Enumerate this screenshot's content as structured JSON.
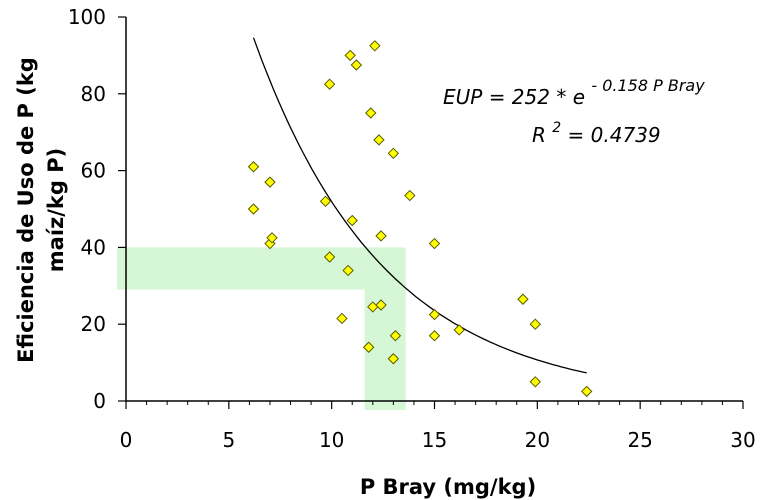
{
  "chart_data": {
    "type": "scatter",
    "xlabel": "P Bray (mg/kg)",
    "ylabel_line1": "Eficiencia de Uso de P (kg",
    "ylabel_line2": "maíz/kg P)",
    "xlim": [
      0,
      30
    ],
    "ylim": [
      0,
      100
    ],
    "x_ticks": [
      "0",
      "5",
      "10",
      "15",
      "20",
      "25",
      "30"
    ],
    "y_ticks": [
      "0",
      "20",
      "40",
      "60",
      "80",
      "100"
    ],
    "x_tick_values": [
      0,
      5,
      10,
      15,
      20,
      25,
      30
    ],
    "y_tick_values": [
      0,
      20,
      40,
      60,
      80,
      100
    ],
    "grid": false,
    "points": [
      {
        "x": 6.2,
        "y": 61
      },
      {
        "x": 6.2,
        "y": 50
      },
      {
        "x": 7.0,
        "y": 57
      },
      {
        "x": 7.0,
        "y": 41
      },
      {
        "x": 7.1,
        "y": 42.5
      },
      {
        "x": 9.7,
        "y": 52
      },
      {
        "x": 9.9,
        "y": 37.5
      },
      {
        "x": 9.9,
        "y": 82.5
      },
      {
        "x": 10.5,
        "y": 21.5
      },
      {
        "x": 10.8,
        "y": 34
      },
      {
        "x": 10.9,
        "y": 90
      },
      {
        "x": 11.0,
        "y": 47
      },
      {
        "x": 11.2,
        "y": 87.5
      },
      {
        "x": 11.8,
        "y": 14
      },
      {
        "x": 11.9,
        "y": 75
      },
      {
        "x": 12.0,
        "y": 24.5
      },
      {
        "x": 12.1,
        "y": 92.5
      },
      {
        "x": 12.3,
        "y": 68
      },
      {
        "x": 12.4,
        "y": 43
      },
      {
        "x": 12.4,
        "y": 25
      },
      {
        "x": 13.0,
        "y": 64.5
      },
      {
        "x": 13.0,
        "y": 11
      },
      {
        "x": 13.1,
        "y": 17
      },
      {
        "x": 13.8,
        "y": 53.5
      },
      {
        "x": 15.0,
        "y": 41
      },
      {
        "x": 15.0,
        "y": 22.5
      },
      {
        "x": 15.0,
        "y": 17
      },
      {
        "x": 16.2,
        "y": 18.5
      },
      {
        "x": 19.3,
        "y": 26.5
      },
      {
        "x": 19.9,
        "y": 20
      },
      {
        "x": 19.9,
        "y": 5
      },
      {
        "x": 22.4,
        "y": 2.5
      }
    ],
    "trendline": {
      "type": "exponential",
      "a": 252,
      "b": -0.158,
      "x_range": [
        6.2,
        22.4
      ]
    },
    "annotations": {
      "eq_main": "EUP = 252 * e",
      "eq_exp": "- 0.158 P Bray",
      "r2_main": "R",
      "r2_sup": "2",
      "r2_value": " = 0.4739"
    },
    "highlight_bands": {
      "horizontal_y_range": [
        29,
        40
      ],
      "vertical_x_range": [
        11.6,
        13.6
      ],
      "color": "#b3f0b3"
    },
    "marker_color": "#ffff00",
    "marker_edge_color": "#5a5a00"
  }
}
